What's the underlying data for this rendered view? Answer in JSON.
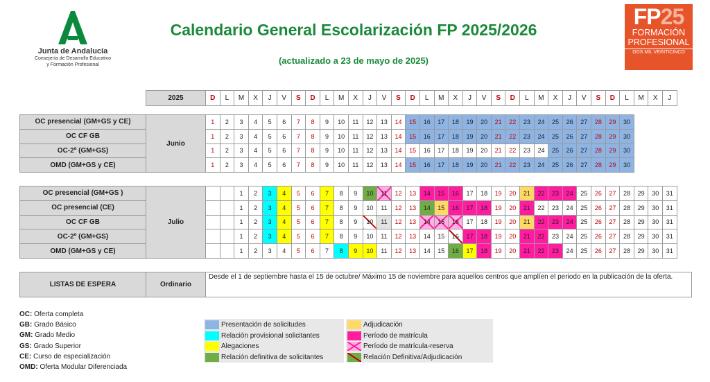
{
  "header": {
    "org_name": "Junta de Andalucía",
    "org_sub1": "Consejería de Desarrollo Educativo",
    "org_sub2": "y Formación Profesional",
    "title": "Calendario General Escolarización FP 2025/2026",
    "subtitle": "(actualizado a 23 de mayo de 2025)",
    "fp_logo": {
      "fp": "FP",
      "num": "25",
      "line1": "FORMACIÓN",
      "line2": "PROFESIONAL",
      "line3": "DOS MIL VEINTICINCO"
    }
  },
  "calendar_header": {
    "year": "2025",
    "days": [
      "D",
      "L",
      "M",
      "X",
      "J",
      "V",
      "S",
      "D",
      "L",
      "M",
      "X",
      "J",
      "V",
      "S",
      "D",
      "L",
      "M",
      "X",
      "J",
      "V",
      "S",
      "D",
      "L",
      "M",
      "X",
      "J",
      "V",
      "S",
      "D",
      "L",
      "M",
      "X",
      "J"
    ]
  },
  "june": {
    "month": "Junio",
    "rows": [
      {
        "label": "OC presencial  (GM+GS y CE)"
      },
      {
        "label": "OC CF GB"
      },
      {
        "label": "OC-2º (GM+GS)"
      },
      {
        "label": "OMD (GM+GS y CE)"
      }
    ]
  },
  "july": {
    "month": "Julio",
    "rows": [
      {
        "label": "OC presencial  (GM+GS )"
      },
      {
        "label": "OC presencial (CE)"
      },
      {
        "label": "OC CF GB"
      },
      {
        "label": "OC-2º (GM+GS)"
      },
      {
        "label": "OMD (GM+GS y CE)"
      }
    ]
  },
  "waiting_list": {
    "label": "LISTAS DE ESPERA",
    "type": "Ordinario",
    "description": "Desde el 1 de septiembre hasta el 15 de octubre/ Máximo 15 de noviembre para aquellos centros que amplíen el periodo en la publicación de la oferta."
  },
  "abbreviations": [
    {
      "key": "OC:",
      "value": " Oferta completa"
    },
    {
      "key": "GB:",
      "value": " Grado Básico"
    },
    {
      "key": "GM:",
      "value": " Grado Medio"
    },
    {
      "key": "GS:",
      "value": " Grado Superior"
    },
    {
      "key": "CE:",
      "value": " Curso de especialización"
    },
    {
      "key": "OMD:",
      "value": " Oferta Modular Diferenciada"
    }
  ],
  "legend": [
    {
      "name": "presentacion",
      "label": "Presentación de solicitudes",
      "color": "#8eb4e3"
    },
    {
      "name": "provisional",
      "label": "Relación provisional solicitantes",
      "color": "#00ffff"
    },
    {
      "name": "alegaciones",
      "label": "Alegaciones",
      "color": "#ffff00"
    },
    {
      "name": "definitiva",
      "label": "Relación definitiva de solicitantes",
      "color": "#70ad47"
    },
    {
      "name": "adjudicacion",
      "label": "Adjudicación",
      "color": "#ffd966"
    },
    {
      "name": "matricula",
      "label": "Período de matrícula",
      "color": "#ff1ca0"
    },
    {
      "name": "matricula-reserva",
      "label": "Período de matrícula-reserva",
      "color": "#ff1ca0"
    },
    {
      "name": "definitiva-adjudicacion",
      "label": "Relación Definitiva/Adjudicación",
      "color": "#c00000"
    }
  ],
  "colors": {
    "title_green": "#1a8a3a",
    "weekend_red": "#c00000",
    "label_gray": "#d9d9d9",
    "fp_orange": "#e8542a"
  }
}
